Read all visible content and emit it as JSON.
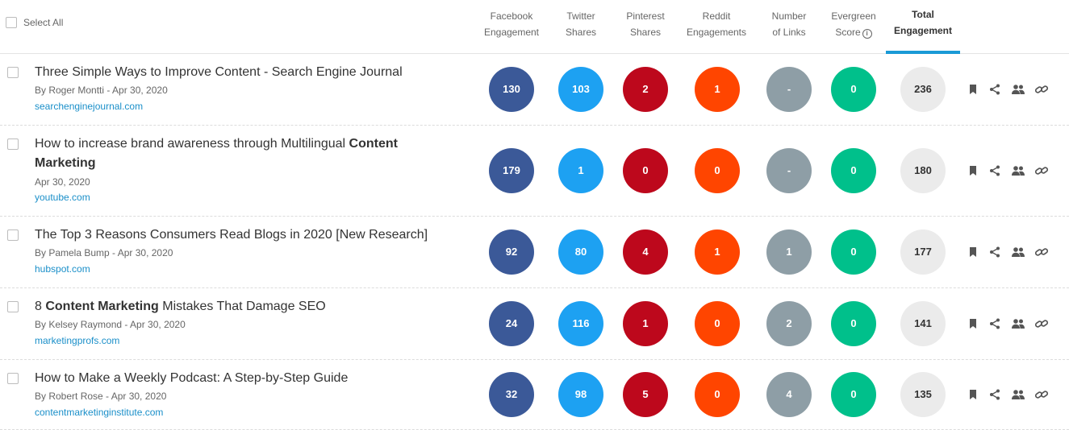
{
  "header": {
    "select_all": "Select All",
    "columns": [
      {
        "line1": "Facebook",
        "line2": "Engagement"
      },
      {
        "line1": "Twitter",
        "line2": "Shares"
      },
      {
        "line1": "Pinterest",
        "line2": "Shares"
      },
      {
        "line1": "Reddit",
        "line2": "Engagements"
      },
      {
        "line1": "Number",
        "line2": "of Links"
      },
      {
        "line1": "Evergreen",
        "line2": "Score"
      },
      {
        "line1": "Total",
        "line2": "Engagement"
      }
    ]
  },
  "colors": {
    "facebook": "#3b5998",
    "twitter": "#1da1f2",
    "pinterest": "#bd081c",
    "reddit": "#ff4500",
    "links": "#8e9ea6",
    "evergreen": "#00c08b",
    "total": "#ebebeb",
    "accent": "#1a9ad6"
  },
  "actions": [
    "bookmark-icon",
    "share-icon",
    "users-icon",
    "link-icon"
  ],
  "rows": [
    {
      "title_pre": "Three Simple Ways to Improve Content - Search Engine Journal",
      "title_bold": "",
      "title_post": "",
      "meta": "By Roger Montti - Apr 30, 2020",
      "domain": "searchenginejournal.com",
      "facebook": "130",
      "twitter": "103",
      "pinterest": "2",
      "reddit": "1",
      "links": "-",
      "evergreen": "0",
      "total": "236"
    },
    {
      "title_pre": "How to increase brand awareness through Multilingual ",
      "title_bold": "Content Marketing",
      "title_post": "",
      "meta": "Apr 30, 2020",
      "domain": "youtube.com",
      "facebook": "179",
      "twitter": "1",
      "pinterest": "0",
      "reddit": "0",
      "links": "-",
      "evergreen": "0",
      "total": "180"
    },
    {
      "title_pre": "The Top 3 Reasons Consumers Read Blogs in 2020 [New Research]",
      "title_bold": "",
      "title_post": "",
      "meta": "By Pamela Bump - Apr 30, 2020",
      "domain": "hubspot.com",
      "facebook": "92",
      "twitter": "80",
      "pinterest": "4",
      "reddit": "1",
      "links": "1",
      "evergreen": "0",
      "total": "177"
    },
    {
      "title_pre": "8 ",
      "title_bold": "Content Marketing",
      "title_post": " Mistakes That Damage SEO",
      "meta": "By Kelsey Raymond - Apr 30, 2020",
      "domain": "marketingprofs.com",
      "facebook": "24",
      "twitter": "116",
      "pinterest": "1",
      "reddit": "0",
      "links": "2",
      "evergreen": "0",
      "total": "141"
    },
    {
      "title_pre": "How to Make a Weekly Podcast: A Step-by-Step Guide",
      "title_bold": "",
      "title_post": "",
      "meta": "By Robert Rose - Apr 30, 2020",
      "domain": "contentmarketinginstitute.com",
      "facebook": "32",
      "twitter": "98",
      "pinterest": "5",
      "reddit": "0",
      "links": "4",
      "evergreen": "0",
      "total": "135"
    }
  ]
}
